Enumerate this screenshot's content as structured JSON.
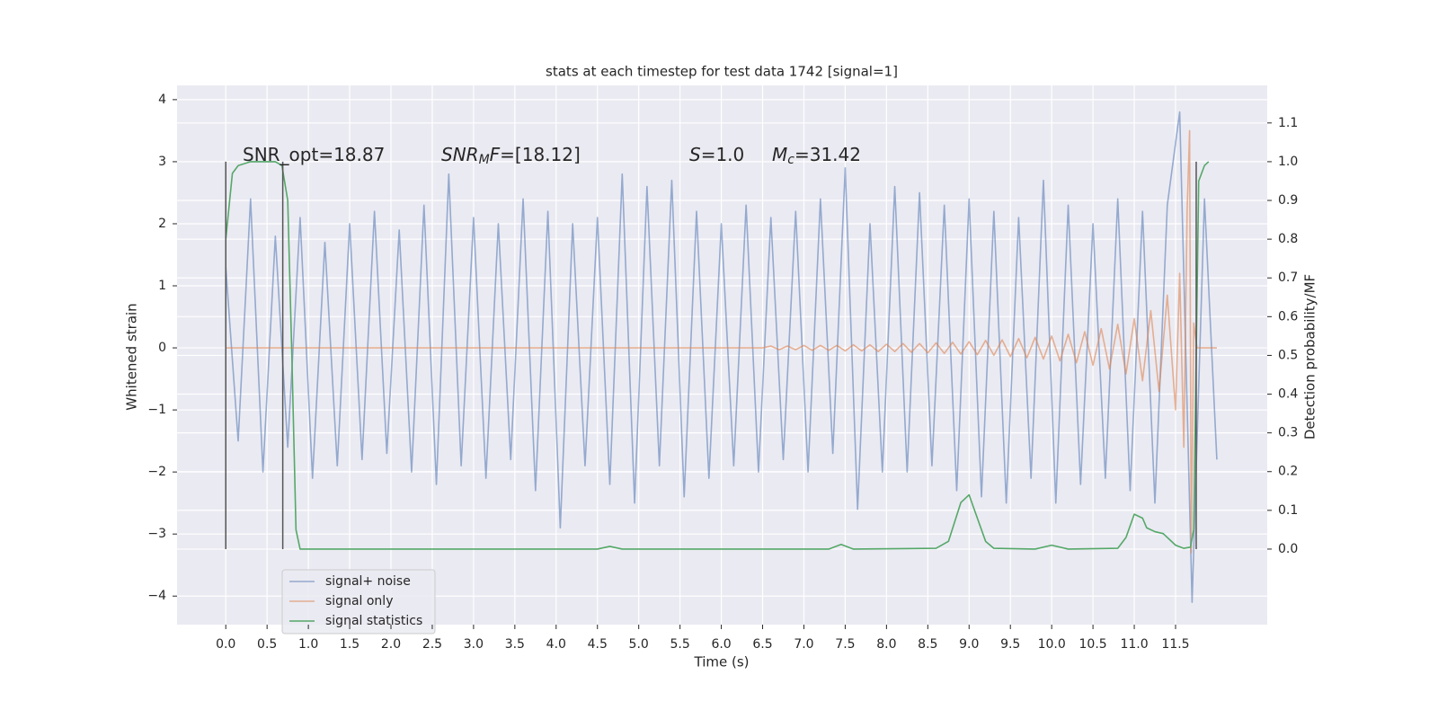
{
  "chart_data": {
    "type": "line",
    "title": "stats at each timestep for test data 1742 [signal=1]",
    "xlabel": "Time (s)",
    "ylabel": "Whitened strain",
    "y2label": "Detection probability/MF",
    "annotations": [
      [
        "SNR_opt=18.87"
      ],
      [
        "SNR",
        "M",
        "F",
        "=[18.12]"
      ],
      [
        "S",
        "=1.0"
      ],
      [
        "M",
        "c",
        "=31.42"
      ]
    ],
    "xlim": [
      -0.59,
      12.61
    ],
    "ylim": [
      -4.46,
      4.23
    ],
    "y2lim": [
      -0.195,
      1.197
    ],
    "xticks": [
      {
        "value": 0,
        "label": "0.0"
      },
      0.5,
      {
        "value": 1,
        "label": "1.0"
      },
      1.5,
      {
        "value": 2,
        "label": "2.0"
      },
      2.5,
      {
        "value": 3,
        "label": "3.0"
      },
      3.5,
      {
        "value": 4,
        "label": "4.0"
      },
      4.5,
      {
        "value": 5,
        "label": "5.0"
      },
      5.5,
      {
        "value": 6,
        "label": "6.0"
      },
      6.5,
      {
        "value": 7,
        "label": "7.0"
      },
      7.5,
      {
        "value": 8,
        "label": "8.0"
      },
      8.5,
      {
        "value": 9,
        "label": "9.0"
      },
      9.5,
      {
        "value": 10,
        "label": "10.0"
      },
      10.5,
      {
        "value": 11,
        "label": "11.0"
      },
      11.5
    ],
    "yticks": [
      {
        "value": -4,
        "label": "−4"
      },
      {
        "value": -3,
        "label": "−3"
      },
      {
        "value": -2,
        "label": "−2"
      },
      {
        "value": -1,
        "label": "−1"
      },
      0,
      1,
      2,
      3,
      4
    ],
    "y2ticks": [
      {
        "value": 0,
        "label": "0.0"
      },
      0.1,
      0.2,
      0.3,
      0.4,
      0.5,
      0.6,
      0.7,
      0.8,
      0.9,
      {
        "value": 1,
        "label": "1.0"
      },
      1.1
    ],
    "grid": true,
    "legend": "lower left",
    "vlines": [
      0,
      0.69,
      11.75
    ],
    "vline_span": [
      0,
      1
    ],
    "vline_color": "#555555",
    "series": [
      {
        "name": "signal+ noise",
        "color": "#4c72b0",
        "x": [
          0,
          0.15,
          0.3,
          0.45,
          0.6,
          0.75,
          0.9,
          1.05,
          1.2,
          1.35,
          1.5,
          1.65,
          1.8,
          1.95,
          2.1,
          2.25,
          2.4,
          2.55,
          2.7,
          2.85,
          3.0,
          3.15,
          3.3,
          3.45,
          3.6,
          3.75,
          3.9,
          4.05,
          4.2,
          4.35,
          4.5,
          4.65,
          4.8,
          4.95,
          5.1,
          5.25,
          5.4,
          5.55,
          5.7,
          5.85,
          6.0,
          6.15,
          6.3,
          6.45,
          6.6,
          6.75,
          6.9,
          7.05,
          7.2,
          7.35,
          7.5,
          7.65,
          7.8,
          7.95,
          8.1,
          8.25,
          8.4,
          8.55,
          8.7,
          8.85,
          9.0,
          9.15,
          9.3,
          9.45,
          9.6,
          9.75,
          9.9,
          10.05,
          10.2,
          10.35,
          10.5,
          10.65,
          10.8,
          10.95,
          11.1,
          11.25,
          11.4,
          11.55,
          11.7,
          11.85,
          12.0
        ],
        "values": [
          1.3,
          -1.5,
          2.4,
          -2.0,
          1.8,
          -1.6,
          2.1,
          -2.1,
          1.7,
          -1.9,
          2.0,
          -1.8,
          2.2,
          -1.7,
          1.9,
          -2.0,
          2.3,
          -2.2,
          2.8,
          -1.9,
          2.1,
          -2.1,
          2.0,
          -1.8,
          2.4,
          -2.3,
          2.2,
          -2.9,
          2.0,
          -1.9,
          2.1,
          -2.2,
          2.8,
          -2.5,
          2.6,
          -1.9,
          2.7,
          -2.4,
          2.2,
          -2.1,
          2.0,
          -1.9,
          2.3,
          -2.0,
          2.1,
          -1.8,
          2.2,
          -2.0,
          2.4,
          -1.7,
          2.9,
          -2.6,
          2.0,
          -2.0,
          2.6,
          -2.0,
          2.5,
          -1.9,
          2.3,
          -2.3,
          2.4,
          -2.4,
          2.2,
          -2.5,
          2.1,
          -2.1,
          2.7,
          -2.5,
          2.3,
          -2.2,
          2.0,
          -2.1,
          2.4,
          -2.3,
          2.2,
          -2.5,
          2.3,
          3.8,
          -4.1,
          2.4,
          -1.8
        ]
      },
      {
        "name": "signal only",
        "color": "#dd8452",
        "x": [
          0,
          6.5,
          6.6,
          6.7,
          6.8,
          6.9,
          7.0,
          7.1,
          7.2,
          7.3,
          7.4,
          7.5,
          7.6,
          7.7,
          7.8,
          7.9,
          8.0,
          8.1,
          8.2,
          8.3,
          8.4,
          8.5,
          8.6,
          8.7,
          8.8,
          8.9,
          9.0,
          9.1,
          9.2,
          9.3,
          9.4,
          9.5,
          9.6,
          9.7,
          9.8,
          9.9,
          10.0,
          10.1,
          10.2,
          10.3,
          10.4,
          10.5,
          10.6,
          10.7,
          10.8,
          10.9,
          11.0,
          11.1,
          11.2,
          11.3,
          11.4,
          11.5,
          11.55,
          11.6,
          11.64,
          11.67,
          11.69,
          11.72,
          11.76,
          12.0
        ],
        "values": [
          0,
          0,
          0.03,
          -0.03,
          0.03,
          -0.03,
          0.04,
          -0.04,
          0.04,
          -0.04,
          0.04,
          -0.05,
          0.05,
          -0.05,
          0.05,
          -0.06,
          0.06,
          -0.06,
          0.07,
          -0.07,
          0.07,
          -0.08,
          0.08,
          -0.09,
          0.09,
          -0.1,
          0.1,
          -0.11,
          0.12,
          -0.12,
          0.13,
          -0.14,
          0.15,
          -0.16,
          0.17,
          -0.18,
          0.19,
          -0.21,
          0.22,
          -0.24,
          0.26,
          -0.28,
          0.31,
          -0.34,
          0.38,
          -0.42,
          0.47,
          -0.53,
          0.6,
          -0.7,
          0.85,
          -1.0,
          1.2,
          -1.6,
          2.2,
          3.5,
          -3.3,
          0.4,
          0,
          0
        ]
      },
      {
        "name": "signal statistics",
        "color": "#55a868",
        "axis": "y2",
        "x": [
          0,
          0.08,
          0.15,
          0.3,
          0.6,
          0.68,
          0.75,
          0.8,
          0.85,
          0.9,
          1.0,
          4.5,
          4.65,
          4.8,
          7.3,
          7.45,
          7.6,
          8.6,
          8.75,
          8.9,
          9.0,
          9.1,
          9.2,
          9.3,
          9.8,
          10.0,
          10.2,
          10.8,
          10.9,
          11.0,
          11.1,
          11.15,
          11.25,
          11.35,
          11.5,
          11.6,
          11.68,
          11.72,
          11.75,
          11.78,
          11.85,
          11.9
        ],
        "values": [
          0.8,
          0.97,
          0.99,
          1.0,
          1.0,
          0.99,
          0.9,
          0.5,
          0.05,
          0.0,
          0.0,
          0.0,
          0.007,
          0.0,
          0.0,
          0.012,
          0.0,
          0.002,
          0.02,
          0.12,
          0.14,
          0.08,
          0.02,
          0.002,
          0.0,
          0.01,
          0.0,
          0.002,
          0.03,
          0.09,
          0.08,
          0.055,
          0.045,
          0.04,
          0.01,
          0.002,
          0.005,
          0.05,
          0.5,
          0.95,
          0.99,
          1.0
        ]
      }
    ]
  }
}
